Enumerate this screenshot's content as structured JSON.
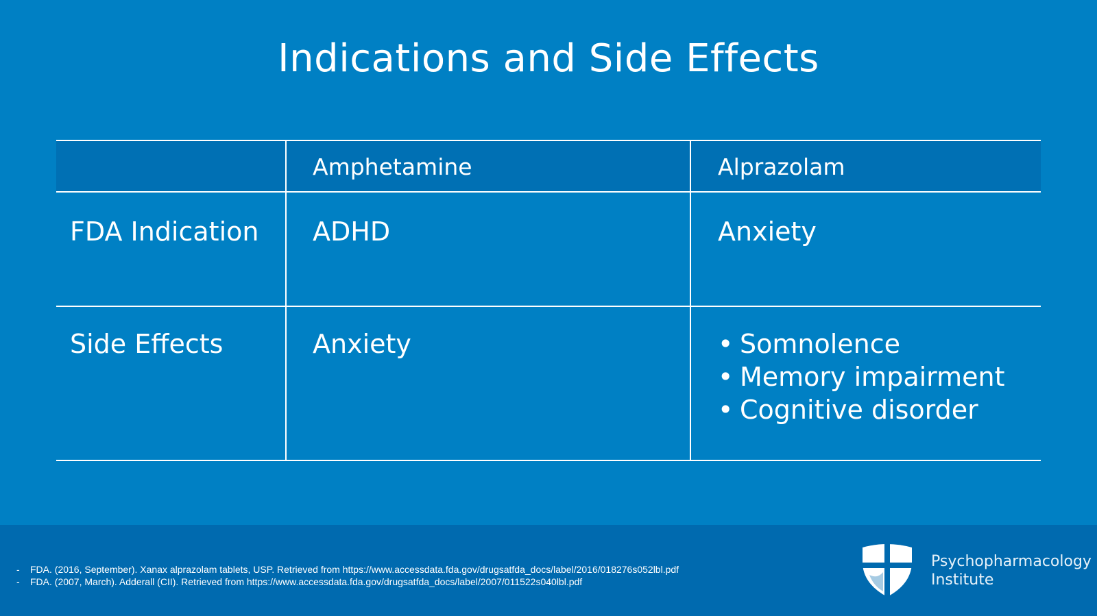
{
  "slide": {
    "title": "Indications and Side Effects"
  },
  "table": {
    "columns": [
      "",
      "Amphetamine",
      "Alprazolam"
    ],
    "rows": [
      {
        "label": "FDA Indication",
        "amphetamine": "ADHD",
        "alprazolam": "Anxiety"
      },
      {
        "label": "Side Effects",
        "amphetamine": "Anxiety",
        "alprazolam": [
          "Somnolence",
          "Memory impairment",
          "Cognitive disorder"
        ]
      }
    ]
  },
  "references": [
    "FDA. (2016, September). Xanax alprazolam tablets, USP. Retrieved from https://www.accessdata.fda.gov/drugsatfda_docs/label/2016/018276s052lbl.pdf",
    "FDA. (2007, March). Adderall (CII). Retrieved from https://www.accessdata.fda.gov/drugsatfda_docs/label/2007/011522s040lbl.pdf"
  ],
  "brand": {
    "line1": "Psychopharmacology",
    "line2": "Institute",
    "logo_icon": "shield-cross-icon"
  },
  "colors": {
    "background": "#0080c4",
    "header_band": "#0070b4",
    "footer": "#006aaf",
    "text": "#ffffff"
  }
}
